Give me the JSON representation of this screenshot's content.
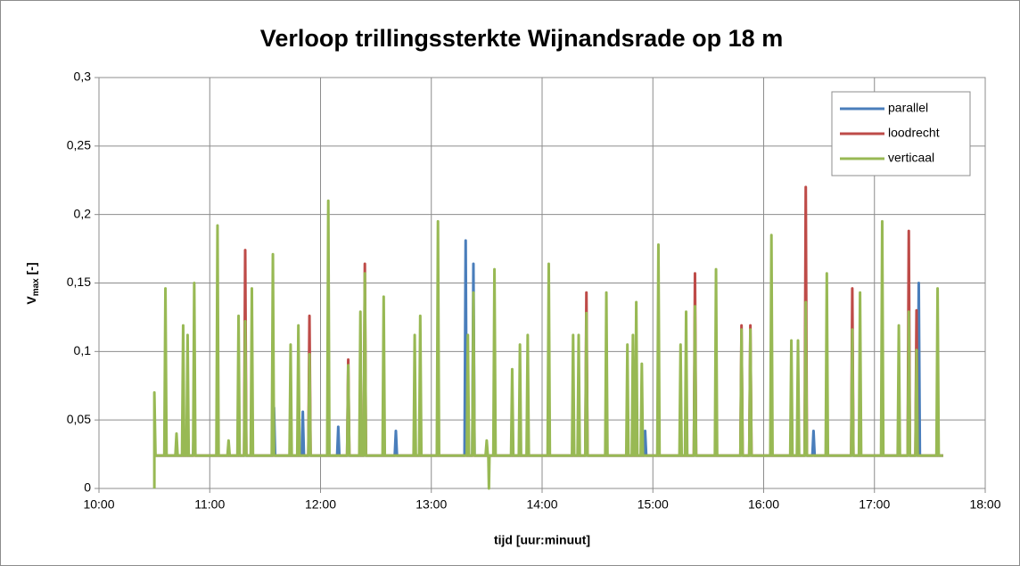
{
  "chart_data": {
    "type": "line",
    "title": "Verloop trillingssterkte Wijnandsrade op 18 m",
    "x_label": "tijd [uur:minuut]",
    "y_label": [
      "V",
      "max",
      " [-]"
    ],
    "xlim": [
      10,
      18
    ],
    "xticks": [
      {
        "value": 10,
        "label": "10:00"
      },
      {
        "value": 11,
        "label": "11:00"
      },
      {
        "value": 12,
        "label": "12:00"
      },
      {
        "value": 13,
        "label": "13:00"
      },
      {
        "value": 14,
        "label": "14:00"
      },
      {
        "value": 15,
        "label": "15:00"
      },
      {
        "value": 16,
        "label": "16:00"
      },
      {
        "value": 17,
        "label": "17:00"
      },
      {
        "value": 18,
        "label": "18:00"
      }
    ],
    "ylim": [
      0,
      0.3
    ],
    "yticks": [
      0,
      {
        "value": 0.05,
        "label": "0,05"
      },
      {
        "value": 0.1,
        "label": "0,1"
      },
      {
        "value": 0.15,
        "label": "0,15"
      },
      {
        "value": 0.2,
        "label": "0,2"
      },
      {
        "value": 0.25,
        "label": "0,25"
      },
      {
        "value": 0.3,
        "label": "0,3"
      }
    ],
    "grid": true,
    "legend": "top-right",
    "series": [
      {
        "name": "parallel",
        "color": "#4a7ebb",
        "x": [
          10.5,
          10.85,
          10.86,
          10.87,
          11.57,
          11.58,
          11.59,
          11.83,
          11.84,
          11.85,
          12.15,
          12.16,
          12.17,
          12.67,
          12.68,
          12.69,
          13.3,
          13.31,
          13.32,
          13.37,
          13.38,
          13.39,
          14.92,
          14.93,
          14.94,
          16.44,
          16.45,
          16.46,
          17.39,
          17.4,
          17.41,
          17.62
        ],
        "values": [
          0.024,
          0.024,
          0.056,
          0.024,
          0.024,
          0.059,
          0.024,
          0.024,
          0.056,
          0.024,
          0.024,
          0.045,
          0.024,
          0.024,
          0.042,
          0.024,
          0.024,
          0.181,
          0.024,
          0.024,
          0.164,
          0.024,
          0.024,
          0.042,
          0.024,
          0.024,
          0.042,
          0.024,
          0.024,
          0.15,
          0.024,
          0.024
        ]
      },
      {
        "name": "loodrecht",
        "color": "#be4b48",
        "x": [
          10.5,
          11.31,
          11.32,
          11.33,
          11.89,
          11.9,
          11.91,
          12.24,
          12.25,
          12.26,
          12.39,
          12.4,
          12.41,
          14.39,
          14.4,
          14.41,
          15.37,
          15.38,
          15.39,
          15.79,
          15.8,
          15.81,
          15.87,
          15.88,
          15.89,
          16.37,
          16.38,
          16.39,
          16.79,
          16.8,
          16.81,
          17.3,
          17.31,
          17.32,
          17.37,
          17.38,
          17.39,
          17.62
        ],
        "values": [
          0.024,
          0.024,
          0.174,
          0.024,
          0.024,
          0.126,
          0.024,
          0.024,
          0.094,
          0.024,
          0.024,
          0.164,
          0.024,
          0.024,
          0.143,
          0.024,
          0.024,
          0.157,
          0.024,
          0.024,
          0.119,
          0.024,
          0.024,
          0.119,
          0.024,
          0.024,
          0.22,
          0.024,
          0.024,
          0.146,
          0.024,
          0.024,
          0.188,
          0.024,
          0.024,
          0.13,
          0.024,
          0.024
        ]
      },
      {
        "name": "verticaal",
        "color": "#98b954",
        "x": [
          10.5,
          10.5,
          10.51,
          10.59,
          10.6,
          10.61,
          10.69,
          10.7,
          10.71,
          10.75,
          10.76,
          10.77,
          10.79,
          10.8,
          10.81,
          10.85,
          10.86,
          10.87,
          11.06,
          11.07,
          11.08,
          11.16,
          11.17,
          11.18,
          11.25,
          11.26,
          11.27,
          11.31,
          11.32,
          11.33,
          11.37,
          11.38,
          11.39,
          11.56,
          11.57,
          11.58,
          11.72,
          11.73,
          11.74,
          11.79,
          11.8,
          11.81,
          11.89,
          11.9,
          11.91,
          12.06,
          12.07,
          12.08,
          12.24,
          12.25,
          12.26,
          12.35,
          12.36,
          12.37,
          12.39,
          12.4,
          12.41,
          12.56,
          12.57,
          12.58,
          12.84,
          12.85,
          12.86,
          12.89,
          12.9,
          12.91,
          13.05,
          13.06,
          13.07,
          13.32,
          13.33,
          13.34,
          13.37,
          13.38,
          13.39,
          13.49,
          13.5,
          13.51,
          13.515,
          13.52,
          13.525,
          13.56,
          13.57,
          13.58,
          13.72,
          13.73,
          13.74,
          13.79,
          13.8,
          13.81,
          13.86,
          13.87,
          13.88,
          14.05,
          14.06,
          14.07,
          14.27,
          14.28,
          14.29,
          14.32,
          14.33,
          14.34,
          14.39,
          14.4,
          14.41,
          14.57,
          14.58,
          14.59,
          14.76,
          14.77,
          14.78,
          14.81,
          14.82,
          14.83,
          14.84,
          14.85,
          14.86,
          14.89,
          14.9,
          14.91,
          15.04,
          15.05,
          15.06,
          15.24,
          15.25,
          15.26,
          15.29,
          15.3,
          15.31,
          15.37,
          15.38,
          15.39,
          15.56,
          15.57,
          15.58,
          15.79,
          15.8,
          15.81,
          15.87,
          15.88,
          15.89,
          16.06,
          16.07,
          16.08,
          16.24,
          16.25,
          16.26,
          16.3,
          16.31,
          16.32,
          16.37,
          16.38,
          16.39,
          16.56,
          16.57,
          16.58,
          16.79,
          16.8,
          16.81,
          16.86,
          16.87,
          16.88,
          17.06,
          17.07,
          17.08,
          17.21,
          17.22,
          17.23,
          17.3,
          17.31,
          17.32,
          17.37,
          17.38,
          17.39,
          17.56,
          17.57,
          17.58,
          17.62
        ],
        "values": [
          0,
          0.07,
          0.024,
          0.024,
          0.146,
          0.024,
          0.024,
          0.04,
          0.024,
          0.024,
          0.119,
          0.024,
          0.024,
          0.112,
          0.024,
          0.024,
          0.15,
          0.024,
          0.024,
          0.192,
          0.024,
          0.024,
          0.035,
          0.024,
          0.024,
          0.126,
          0.024,
          0.024,
          0.122,
          0.024,
          0.024,
          0.146,
          0.024,
          0.024,
          0.171,
          0.024,
          0.024,
          0.105,
          0.024,
          0.024,
          0.119,
          0.024,
          0.024,
          0.098,
          0.024,
          0.024,
          0.21,
          0.024,
          0.024,
          0.09,
          0.024,
          0.024,
          0.129,
          0.024,
          0.024,
          0.157,
          0.024,
          0.024,
          0.14,
          0.024,
          0.024,
          0.112,
          0.024,
          0.024,
          0.126,
          0.024,
          0.024,
          0.195,
          0.024,
          0.024,
          0.112,
          0.024,
          0.024,
          0.143,
          0.024,
          0.024,
          0.035,
          0.024,
          0.024,
          0,
          0.024,
          0.024,
          0.16,
          0.024,
          0.024,
          0.087,
          0.024,
          0.024,
          0.105,
          0.024,
          0.024,
          0.112,
          0.024,
          0.024,
          0.164,
          0.024,
          0.024,
          0.112,
          0.024,
          0.024,
          0.112,
          0.024,
          0.024,
          0.128,
          0.024,
          0.024,
          0.143,
          0.024,
          0.024,
          0.105,
          0.024,
          0.024,
          0.112,
          0.024,
          0.024,
          0.136,
          0.024,
          0.024,
          0.091,
          0.024,
          0.024,
          0.178,
          0.024,
          0.024,
          0.105,
          0.024,
          0.024,
          0.129,
          0.024,
          0.024,
          0.133,
          0.024,
          0.024,
          0.16,
          0.024,
          0.024,
          0.116,
          0.024,
          0.024,
          0.116,
          0.024,
          0.024,
          0.185,
          0.024,
          0.024,
          0.108,
          0.024,
          0.024,
          0.108,
          0.024,
          0.024,
          0.136,
          0.024,
          0.024,
          0.157,
          0.024,
          0.024,
          0.116,
          0.024,
          0.024,
          0.143,
          0.024,
          0.024,
          0.195,
          0.024,
          0.024,
          0.119,
          0.024,
          0.024,
          0.129,
          0.024,
          0.024,
          0.101,
          0.024,
          0.024,
          0.146,
          0.024,
          0.024
        ]
      }
    ]
  }
}
